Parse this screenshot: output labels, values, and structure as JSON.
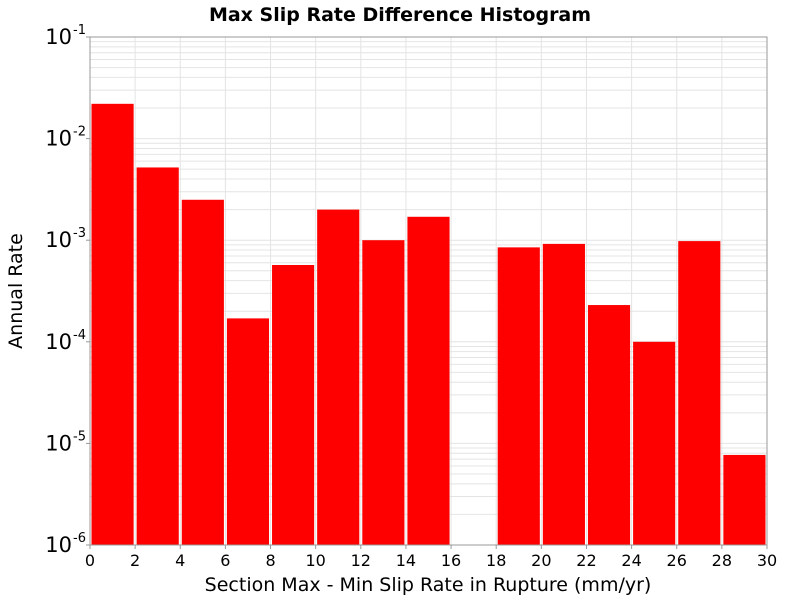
{
  "chart_data": {
    "type": "bar",
    "title": "Max Slip Rate Difference Histogram",
    "xlabel": "Section Max - Min Slip Rate in Rupture (mm/yr)",
    "ylabel": "Annual Rate",
    "xlim": [
      0,
      30
    ],
    "ylim": [
      1e-06,
      0.1
    ],
    "yscale": "log",
    "grid": true,
    "bin_width": 2,
    "x_ticks": [
      "0",
      "2",
      "4",
      "6",
      "8",
      "10",
      "12",
      "14",
      "16",
      "18",
      "20",
      "22",
      "24",
      "26",
      "28",
      "30"
    ],
    "y_ticks": [
      {
        "base": "10",
        "exp": "-1",
        "value": 0.1
      },
      {
        "base": "10",
        "exp": "-2",
        "value": 0.01
      },
      {
        "base": "10",
        "exp": "-3",
        "value": 0.001
      },
      {
        "base": "10",
        "exp": "-4",
        "value": 0.0001
      },
      {
        "base": "10",
        "exp": "-5",
        "value": 1e-05
      },
      {
        "base": "10",
        "exp": "-6",
        "value": 1e-06
      }
    ],
    "bins": [
      {
        "x0": 0,
        "x1": 2,
        "value": 0.022
      },
      {
        "x0": 2,
        "x1": 4,
        "value": 0.0052
      },
      {
        "x0": 4,
        "x1": 6,
        "value": 0.0025
      },
      {
        "x0": 6,
        "x1": 8,
        "value": 0.00017
      },
      {
        "x0": 8,
        "x1": 10,
        "value": 0.00057
      },
      {
        "x0": 10,
        "x1": 12,
        "value": 0.002
      },
      {
        "x0": 12,
        "x1": 14,
        "value": 0.001
      },
      {
        "x0": 14,
        "x1": 16,
        "value": 0.0017
      },
      {
        "x0": 18,
        "x1": 20,
        "value": 0.00085
      },
      {
        "x0": 20,
        "x1": 22,
        "value": 0.00092
      },
      {
        "x0": 22,
        "x1": 24,
        "value": 0.00023
      },
      {
        "x0": 24,
        "x1": 26,
        "value": 0.0001
      },
      {
        "x0": 26,
        "x1": 28,
        "value": 0.00098
      },
      {
        "x0": 28,
        "x1": 30,
        "value": 7.7e-06
      }
    ],
    "colors": {
      "bar": "#ff0000",
      "grid": "#e4e4e4",
      "frame": "#999999"
    }
  }
}
